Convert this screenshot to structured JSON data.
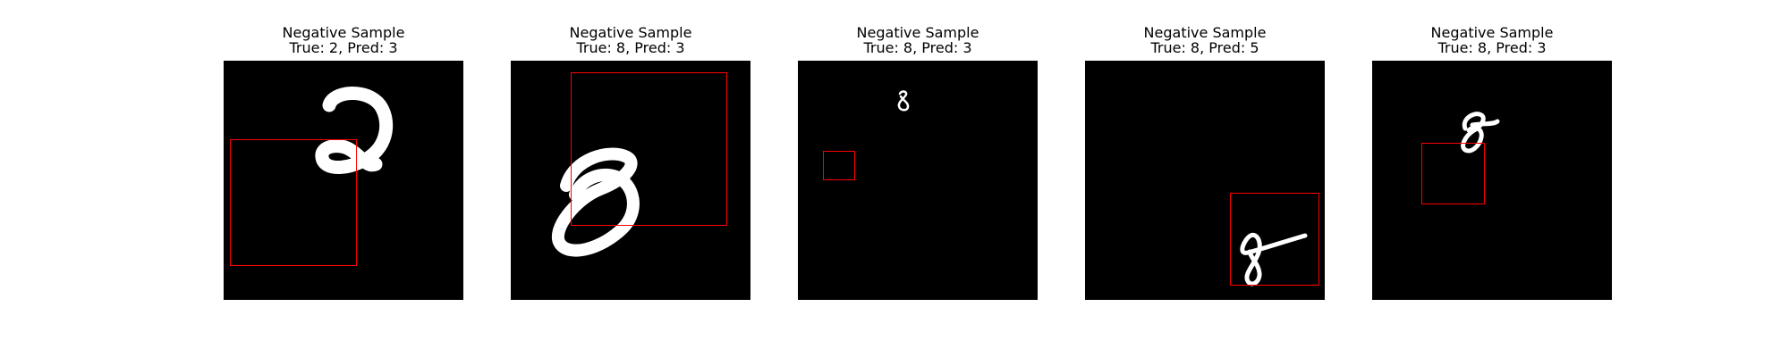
{
  "colors": {
    "background": "#ffffff",
    "image_background": "#000000",
    "digit_stroke": "#ffffff",
    "box_color": "#ff0000"
  },
  "panels": [
    {
      "title": "Negative Sample",
      "subtitle": "True: 2, Pred: 3"
    },
    {
      "title": "Negative Sample",
      "subtitle": "True: 8, Pred: 3"
    },
    {
      "title": "Negative Sample",
      "subtitle": "True: 8, Pred: 3"
    },
    {
      "title": "Negative Sample",
      "subtitle": "True: 8, Pred: 5"
    },
    {
      "title": "Negative Sample",
      "subtitle": "True: 8, Pred: 3"
    }
  ]
}
